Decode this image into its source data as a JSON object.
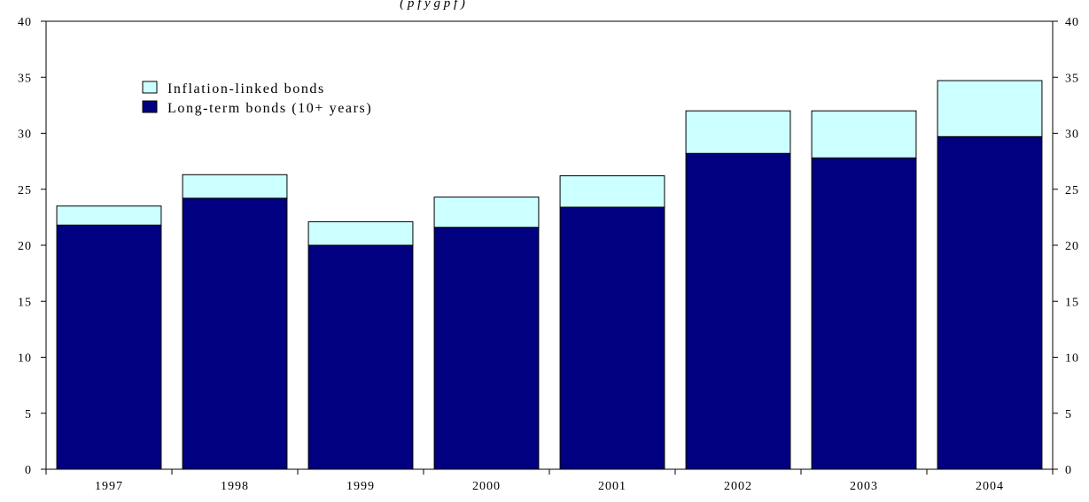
{
  "chart_data": {
    "type": "bar",
    "stacked": true,
    "title": "",
    "subtitle_fragment": "( p f  y g p  f )",
    "xlabel": "",
    "ylabel": "",
    "categories": [
      "1997",
      "1998",
      "1999",
      "2000",
      "2001",
      "2002",
      "2003",
      "2004"
    ],
    "series": [
      {
        "name": "Long-term bonds (10+ years)",
        "color": "#000080",
        "values": [
          21.8,
          24.2,
          20.0,
          21.6,
          23.4,
          28.2,
          27.8,
          29.7
        ]
      },
      {
        "name": "Inflation-linked bonds",
        "color": "#ccffff",
        "values": [
          1.7,
          2.1,
          2.1,
          2.7,
          2.8,
          3.8,
          4.2,
          5.0
        ]
      }
    ],
    "ylim": [
      0,
      40
    ],
    "yticks": [
      0,
      5,
      10,
      15,
      20,
      25,
      30,
      35,
      40
    ],
    "y_axis_left": true,
    "y_axis_right": true,
    "grid": false,
    "legend_position": "top-left",
    "legend": [
      {
        "label": "Inflation-linked bonds",
        "color": "#ccffff"
      },
      {
        "label": "Long-term bonds (10+ years)",
        "color": "#000080"
      }
    ]
  }
}
